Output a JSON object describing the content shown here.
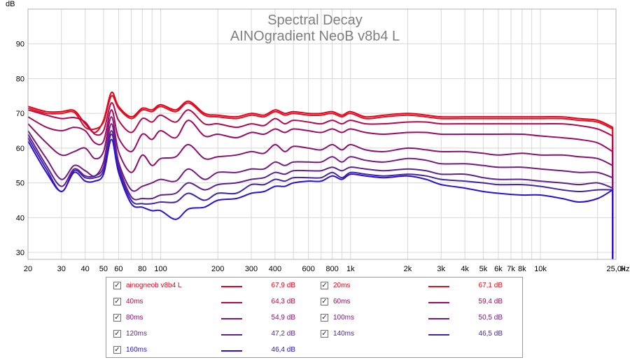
{
  "chart_data": {
    "type": "line",
    "title": "Spectral Decay",
    "subtitle": "AINOgradient NeoB v8b4 L",
    "ylabel": "dB",
    "xlabel": "Hz",
    "x_scale": "log",
    "xlim": [
      20,
      25000
    ],
    "ylim": [
      28,
      100
    ],
    "grid": true,
    "x_ticks": [
      {
        "value": 20,
        "label": "20"
      },
      {
        "value": 30,
        "label": "30"
      },
      {
        "value": 40,
        "label": "40"
      },
      {
        "value": 50,
        "label": "50"
      },
      {
        "value": 60,
        "label": "60"
      },
      {
        "value": 80,
        "label": "80"
      },
      {
        "value": 100,
        "label": "100"
      },
      {
        "value": 200,
        "label": "200"
      },
      {
        "value": 300,
        "label": "300"
      },
      {
        "value": 400,
        "label": "400"
      },
      {
        "value": 600,
        "label": "600"
      },
      {
        "value": 800,
        "label": "800"
      },
      {
        "value": 1000,
        "label": "1k"
      },
      {
        "value": 2000,
        "label": "2k"
      },
      {
        "value": 3000,
        "label": "3k"
      },
      {
        "value": 4000,
        "label": "4k"
      },
      {
        "value": 5000,
        "label": "5k"
      },
      {
        "value": 6000,
        "label": "6k"
      },
      {
        "value": 7000,
        "label": "7k"
      },
      {
        "value": 8000,
        "label": "8k"
      },
      {
        "value": 10000,
        "label": "10k"
      },
      {
        "value": 25000,
        "label": "25,0k"
      }
    ],
    "x_minor": [
      70,
      90,
      500,
      700,
      900,
      9000,
      20000
    ],
    "y_ticks": [
      30,
      40,
      50,
      60,
      70,
      80,
      90
    ],
    "x": [
      20,
      25,
      30,
      35,
      40,
      45,
      50,
      55,
      60,
      70,
      80,
      90,
      100,
      120,
      140,
      170,
      200,
      250,
      300,
      350,
      400,
      450,
      500,
      600,
      700,
      800,
      900,
      1000,
      1200,
      1500,
      2000,
      2500,
      3000,
      4000,
      5000,
      6000,
      8000,
      10000,
      13000,
      16000,
      20000,
      24000
    ],
    "series": [
      {
        "name": "ainogneob v8b4 L",
        "color": "#e8001c",
        "legend_value": "67,9 dB",
        "values": [
          72,
          70.5,
          70.5,
          70.8,
          67,
          64.5,
          68,
          76,
          72,
          69,
          71.5,
          71,
          72.5,
          71,
          73.5,
          70,
          69.5,
          69,
          70,
          69.5,
          71,
          70,
          70.5,
          70,
          70,
          70.5,
          69.5,
          70.5,
          69,
          69.5,
          70,
          69.5,
          69,
          69,
          69,
          69,
          69,
          69,
          69,
          68.5,
          68,
          66
        ]
      },
      {
        "name": "20ms",
        "color": "#e0101e",
        "legend_value": "67,1 dB",
        "values": [
          71.5,
          70,
          70,
          70.3,
          66,
          65.5,
          67.5,
          75,
          71.5,
          68.5,
          71,
          70.5,
          72,
          70.5,
          73,
          69.5,
          69,
          68.5,
          69.5,
          69,
          70.5,
          69.5,
          70,
          69.5,
          69.5,
          70,
          69,
          70,
          68.5,
          69,
          69.5,
          69,
          68.5,
          68.5,
          68.5,
          68.5,
          68.5,
          68.5,
          68.5,
          68,
          67.5,
          65.5
        ]
      },
      {
        "name": "40ms",
        "color": "#b3094c",
        "legend_value": "64,3 dB",
        "values": [
          71,
          69.5,
          68.5,
          68.8,
          67.5,
          64,
          65,
          73,
          68,
          64.5,
          68.5,
          67.5,
          69.5,
          67.5,
          71,
          67,
          67,
          66,
          67,
          66.5,
          68.5,
          67,
          68,
          67.5,
          67,
          68,
          67,
          68,
          67,
          67,
          67.5,
          67.5,
          67,
          67,
          67,
          67,
          67,
          67,
          67,
          66.5,
          65.5,
          63.5
        ]
      },
      {
        "name": "60ms",
        "color": "#9d0a63",
        "legend_value": "59,4 dB",
        "values": [
          69,
          66,
          65,
          66,
          65,
          61.5,
          62,
          71,
          63,
          59,
          64,
          62.5,
          65,
          63,
          68,
          63.5,
          64,
          63,
          64.5,
          64,
          65.5,
          64.5,
          65.5,
          65,
          64.5,
          65.5,
          64.5,
          65.5,
          64.5,
          64,
          64.5,
          64.5,
          64,
          64,
          64,
          64,
          64,
          63.5,
          63,
          62.5,
          61.5,
          59
        ]
      },
      {
        "name": "80ms",
        "color": "#88126f",
        "legend_value": "54,9 dB",
        "values": [
          67,
          61.5,
          58,
          59,
          60,
          57,
          59,
          69,
          59,
          53,
          58,
          55,
          57,
          57.5,
          61,
          57,
          57.5,
          58,
          59,
          58.5,
          61,
          59,
          60.5,
          60,
          59.5,
          61,
          59.5,
          61,
          59.5,
          59,
          60,
          59.5,
          59,
          59,
          58.5,
          58,
          58.5,
          58,
          58,
          57.5,
          57,
          55
        ]
      },
      {
        "name": "100ms",
        "color": "#751a82",
        "legend_value": "50,5 dB",
        "values": [
          65,
          57,
          51,
          55,
          53.5,
          52,
          56,
          67,
          56,
          48,
          49,
          50,
          51,
          50.5,
          54,
          51,
          53,
          53,
          54,
          54,
          56,
          55,
          56,
          56,
          56,
          57.5,
          56,
          57.5,
          56.5,
          56,
          57,
          56.5,
          55.5,
          55.5,
          55,
          54.5,
          54.5,
          54,
          53.5,
          53,
          53,
          51.5
        ]
      },
      {
        "name": "120ms",
        "color": "#5e218f",
        "legend_value": "47,2 dB",
        "values": [
          64,
          55,
          49,
          54,
          52,
          52,
          54.5,
          65,
          55,
          46,
          45.5,
          45.5,
          46.5,
          47,
          50,
          48,
          49.5,
          50,
          51,
          51.5,
          53,
          52.5,
          53.5,
          53.5,
          53.5,
          54.5,
          53.5,
          54.5,
          54,
          53.5,
          54,
          53.5,
          52.5,
          52.5,
          51.5,
          51,
          51,
          50.5,
          50,
          49.5,
          50,
          48.5
        ]
      },
      {
        "name": "140ms",
        "color": "#4424a5",
        "legend_value": "46,5 dB",
        "values": [
          63,
          54,
          47.5,
          53.5,
          51.5,
          51.5,
          53.5,
          64,
          54,
          45,
          44,
          44,
          44.5,
          44.5,
          47,
          45,
          47,
          47,
          49.5,
          49.5,
          51,
          50.5,
          51.5,
          51.5,
          51.5,
          53,
          51.5,
          53,
          52.5,
          52,
          52.5,
          52,
          51,
          50.5,
          50,
          49.5,
          49.5,
          49,
          48,
          47.5,
          48,
          48
        ]
      },
      {
        "name": "160ms",
        "color": "#2a10d8",
        "legend_value": "46,4 dB",
        "values": [
          62,
          53,
          47.5,
          53,
          50.5,
          50.5,
          52.5,
          62.5,
          53,
          44,
          43,
          42,
          42,
          39.5,
          42.5,
          43,
          45,
          45.5,
          47,
          47.5,
          49,
          49,
          50,
          50.5,
          50.5,
          52,
          51,
          52.5,
          52,
          51.5,
          52,
          51,
          49.5,
          48.5,
          47.5,
          47,
          46.5,
          46.5,
          45.5,
          44.5,
          45.5,
          48
        ]
      }
    ]
  },
  "legend": {
    "check_glyph": "✓"
  }
}
